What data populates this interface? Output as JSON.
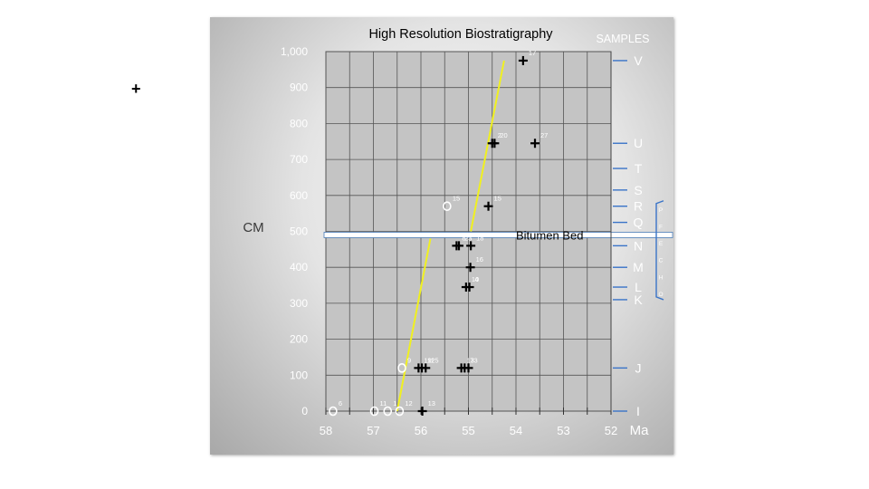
{
  "stray_mark": "+",
  "chart_data": {
    "type": "scatter",
    "title": "High Resolution Biostratigraphy",
    "xlabel": "Ma",
    "ylabel": "CM",
    "xlim": [
      58,
      52
    ],
    "ylim": [
      0,
      1000
    ],
    "x_ticks": [
      58,
      57,
      56,
      55,
      54,
      53,
      52
    ],
    "y_ticks": [
      0,
      100,
      200,
      300,
      400,
      500,
      600,
      700,
      800,
      900,
      1000
    ],
    "y_tick_labels": [
      "0",
      "100",
      "200",
      "300",
      "400",
      "500",
      "600",
      "700",
      "800",
      "900",
      "1,000"
    ],
    "grid": true,
    "samples_label": "SAMPLES",
    "samples": [
      {
        "label": "V",
        "y": 975
      },
      {
        "label": "U",
        "y": 745
      },
      {
        "label": "T",
        "y": 675
      },
      {
        "label": "S",
        "y": 615
      },
      {
        "label": "R",
        "y": 570
      },
      {
        "label": "Q",
        "y": 525
      },
      {
        "label": "N",
        "y": 460
      },
      {
        "label": "M",
        "y": 400
      },
      {
        "label": "L",
        "y": 345
      },
      {
        "label": "K",
        "y": 310
      },
      {
        "label": "J",
        "y": 120
      },
      {
        "label": "I",
        "y": 0
      }
    ],
    "bracket_label": "PFECHO",
    "bracket_range": [
      310,
      585
    ],
    "bitumen_bed": {
      "label": "Bitumen Bed",
      "y": 490
    },
    "crosses": [
      {
        "x": 53.85,
        "y": 975,
        "label": "17"
      },
      {
        "x": 54.5,
        "y": 745,
        "label": "2"
      },
      {
        "x": 54.45,
        "y": 745,
        "label": "20"
      },
      {
        "x": 53.6,
        "y": 745,
        "label": "27"
      },
      {
        "x": 54.58,
        "y": 570,
        "label": "15"
      },
      {
        "x": 55.25,
        "y": 460,
        "label": "8"
      },
      {
        "x": 55.2,
        "y": 460,
        "label": "23"
      },
      {
        "x": 54.95,
        "y": 460,
        "label": "18"
      },
      {
        "x": 54.96,
        "y": 400,
        "label": "16"
      },
      {
        "x": 55.05,
        "y": 345,
        "label": "10"
      },
      {
        "x": 54.98,
        "y": 345,
        "label": "4"
      },
      {
        "x": 56.05,
        "y": 120,
        "label": "19"
      },
      {
        "x": 55.98,
        "y": 120,
        "label": "11"
      },
      {
        "x": 55.9,
        "y": 120,
        "label": "25"
      },
      {
        "x": 55.15,
        "y": 120,
        "label": "13"
      },
      {
        "x": 55.08,
        "y": 120,
        "label": "7"
      },
      {
        "x": 55.0,
        "y": 120,
        "label": "3"
      },
      {
        "x": 55.97,
        "y": 0,
        "label": "13"
      }
    ],
    "circles": [
      {
        "x": 55.45,
        "y": 570,
        "label": "15"
      },
      {
        "x": 56.4,
        "y": 120,
        "label": "9"
      },
      {
        "x": 57.85,
        "y": 0,
        "label": "6"
      },
      {
        "x": 56.98,
        "y": 0,
        "label": "11"
      },
      {
        "x": 56.7,
        "y": 0,
        "label": "1"
      },
      {
        "x": 56.45,
        "y": 0,
        "label": "12"
      }
    ],
    "trend_lines": [
      {
        "name": "lower",
        "points": [
          [
            56.5,
            0
          ],
          [
            55.8,
            480
          ]
        ]
      },
      {
        "name": "upper",
        "points": [
          [
            54.95,
            500
          ],
          [
            54.25,
            975
          ]
        ]
      }
    ]
  }
}
